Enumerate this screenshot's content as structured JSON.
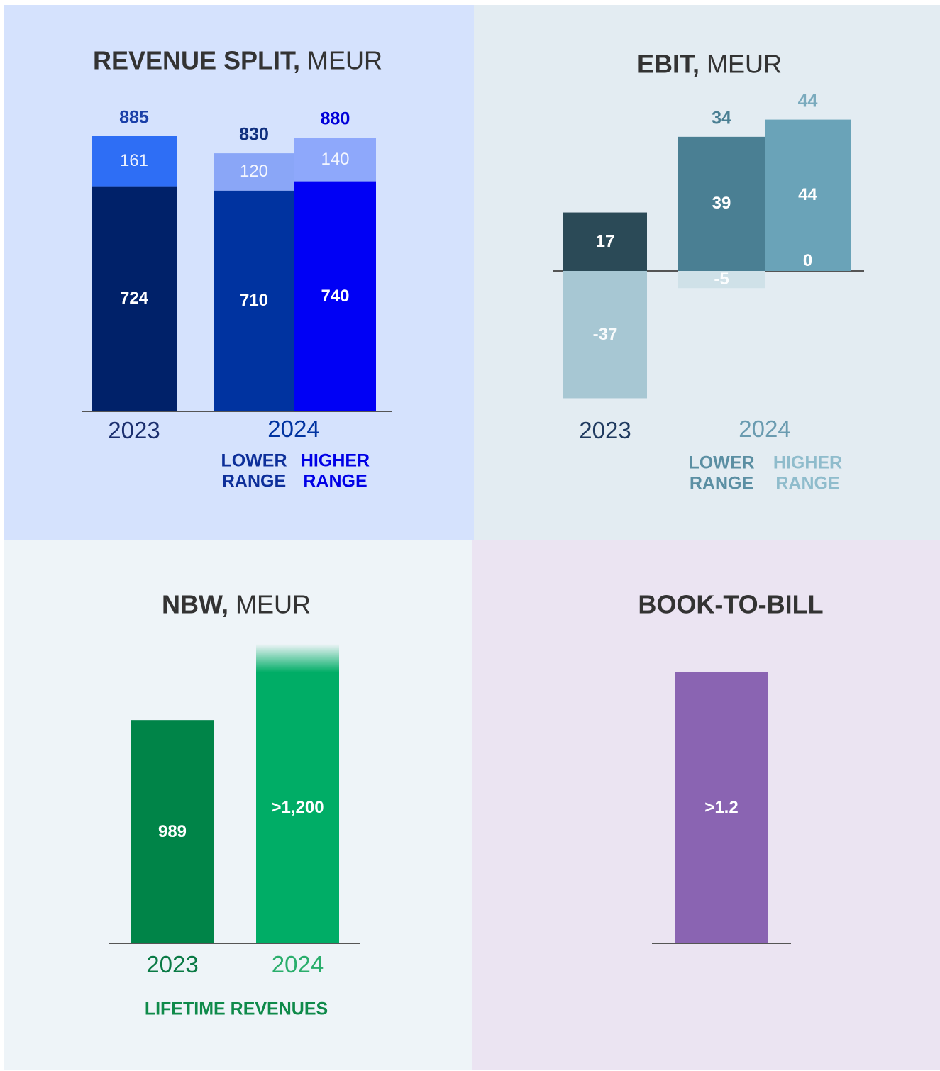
{
  "chart_data": [
    {
      "type": "stacked_bar",
      "title": "REVENUE SPLIT,",
      "title_unit": "MEUR",
      "categories": [
        "2023",
        "LOWER RANGE",
        "HIGHER RANGE"
      ],
      "group_label": "2024",
      "series": [
        {
          "values": [
            724,
            710,
            740
          ],
          "colors": [
            "#002169",
            "#0033a0",
            "#0000f5"
          ]
        },
        {
          "values": [
            161,
            120,
            140
          ],
          "colors": [
            "#2e6ef5",
            "#8aa6f7",
            "#8ea8fb"
          ]
        }
      ],
      "totals": [
        885,
        830,
        880
      ],
      "total_colors": [
        "#1a3fa8",
        "#10307f",
        "#0000d8"
      ],
      "category_colors": [
        "#1a2e6e",
        "#0d2f9a",
        "#0000e6"
      ],
      "group_label_color": "#0033a0"
    },
    {
      "type": "diverging_bar",
      "title": "EBIT,",
      "title_unit": "MEUR",
      "categories": [
        "2023",
        "LOWER RANGE",
        "HIGHER RANGE"
      ],
      "group_label": "2024",
      "series": [
        {
          "values": [
            17,
            39,
            44
          ],
          "colors": [
            "#2b4a57",
            "#4a7f93",
            "#6aa3b8"
          ]
        },
        {
          "values": [
            -37,
            -5,
            0
          ],
          "colors": [
            "#a7c7d3",
            "#cfe1e8",
            "#dde9ee"
          ]
        }
      ],
      "totals": [
        null,
        34,
        44
      ],
      "total_colors": [
        null,
        "#4a7f93",
        "#7aaabd"
      ],
      "category_colors": [
        "#1f3a5f",
        "#5b8fa3",
        "#8fbccc"
      ],
      "group_label_color": "#6a9bb0"
    },
    {
      "type": "bar",
      "title": "NBW,",
      "title_unit": "MEUR",
      "categories": [
        "2023",
        "2024"
      ],
      "values": [
        989,
        1200
      ],
      "value_labels": [
        "989",
        ">1,200"
      ],
      "colors": [
        "#008448",
        "#00ad66"
      ],
      "fade_top": [
        false,
        true
      ],
      "category_colors": [
        "#0a7a45",
        "#2aae6c"
      ],
      "subtitle": "LIFETIME REVENUES",
      "subtitle_color": "#0f8a4a"
    },
    {
      "type": "bar",
      "title": "BOOK-TO-BILL",
      "categories": [
        null
      ],
      "values": [
        1.2
      ],
      "value_labels": [
        ">1.2"
      ],
      "colors": [
        "#8a64b2"
      ],
      "fade_top": [
        false
      ],
      "category_colors": [
        "#333"
      ]
    }
  ]
}
